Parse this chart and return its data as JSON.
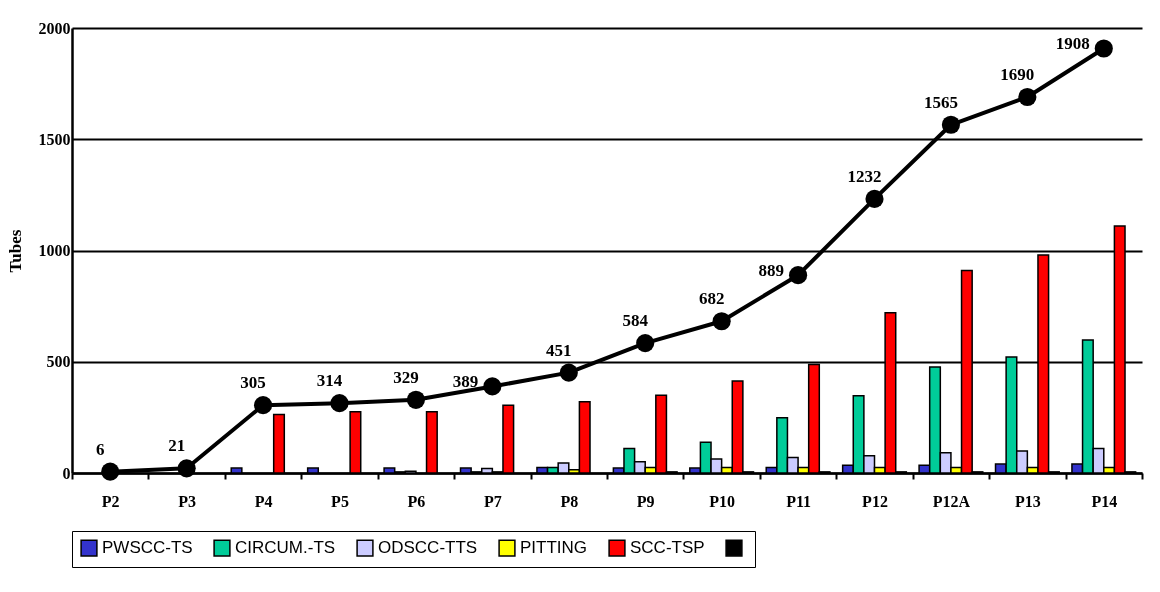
{
  "chart_data": {
    "type": "bar",
    "ylabel": "Tubes",
    "categories": [
      "P2",
      "P3",
      "P4",
      "P5",
      "P6",
      "P7",
      "P8",
      "P9",
      "P10",
      "P11",
      "P12",
      "P12A",
      "P13",
      "P14"
    ],
    "series": [
      {
        "name": "PWSCC-TS",
        "color": "#3333cc",
        "values": [
          null,
          null,
          22,
          22,
          22,
          22,
          25,
          22,
          22,
          25,
          35,
          35,
          40,
          40
        ]
      },
      {
        "name": "CIRCUM.-TS",
        "color": "#00cc99",
        "values": [
          null,
          null,
          null,
          null,
          5,
          5,
          25,
          110,
          138,
          248,
          347,
          476,
          521,
          598
        ]
      },
      {
        "name": "ODSCC-TTS",
        "color": "#ccccff",
        "values": [
          null,
          null,
          null,
          null,
          8,
          20,
          45,
          51,
          63,
          70,
          78,
          91,
          99,
          110
        ]
      },
      {
        "name": "PITTING",
        "color": "#ffff00",
        "values": [
          null,
          null,
          null,
          null,
          null,
          5,
          15,
          25,
          25,
          25,
          25,
          25,
          25,
          25
        ]
      },
      {
        "name": "SCC-TSP",
        "color": "#ff0000",
        "values": [
          null,
          null,
          263,
          275,
          275,
          304,
          320,
          349,
          413,
          488,
          720,
          910,
          980,
          1110
        ]
      },
      {
        "color": "#000000",
        "values": [
          null,
          null,
          null,
          null,
          null,
          null,
          null,
          5,
          5,
          5,
          5,
          5,
          5,
          5
        ]
      },
      {
        "type": "line",
        "color": "#000000",
        "marker": "circle",
        "values": [
          6,
          21,
          305,
          314,
          329,
          389,
          451,
          584,
          682,
          889,
          1232,
          1565,
          1690,
          1908
        ],
        "value_labels": [
          "6",
          "21",
          "305",
          "314",
          "329",
          "389",
          "451",
          "584",
          "682",
          "889",
          "1232",
          "1565",
          "1690",
          "1908"
        ]
      }
    ],
    "ylim": [
      0,
      2000
    ],
    "yticks": [
      0,
      500,
      1000,
      1500,
      2000
    ],
    "grid": "y",
    "legend": "bottom"
  }
}
